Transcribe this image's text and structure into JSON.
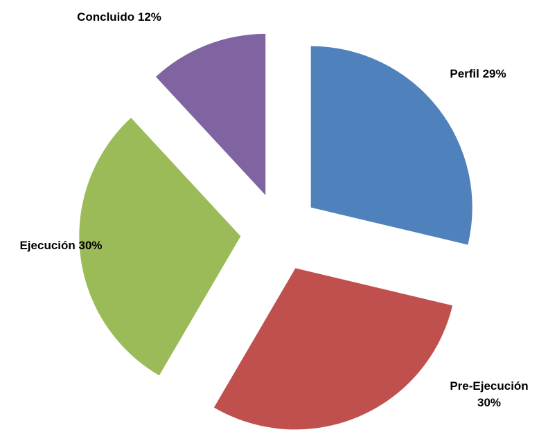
{
  "chart_data": {
    "type": "pie",
    "values": [
      29,
      30,
      30,
      12
    ],
    "value_labels": [
      "Perfil 29%",
      "Pre-Ejecución 30%",
      "Ejecución 30%",
      "Concluido 12%"
    ],
    "colors": [
      "#4f81bd",
      "#c0504d",
      "#9bbb59",
      "#8064a2"
    ]
  }
}
